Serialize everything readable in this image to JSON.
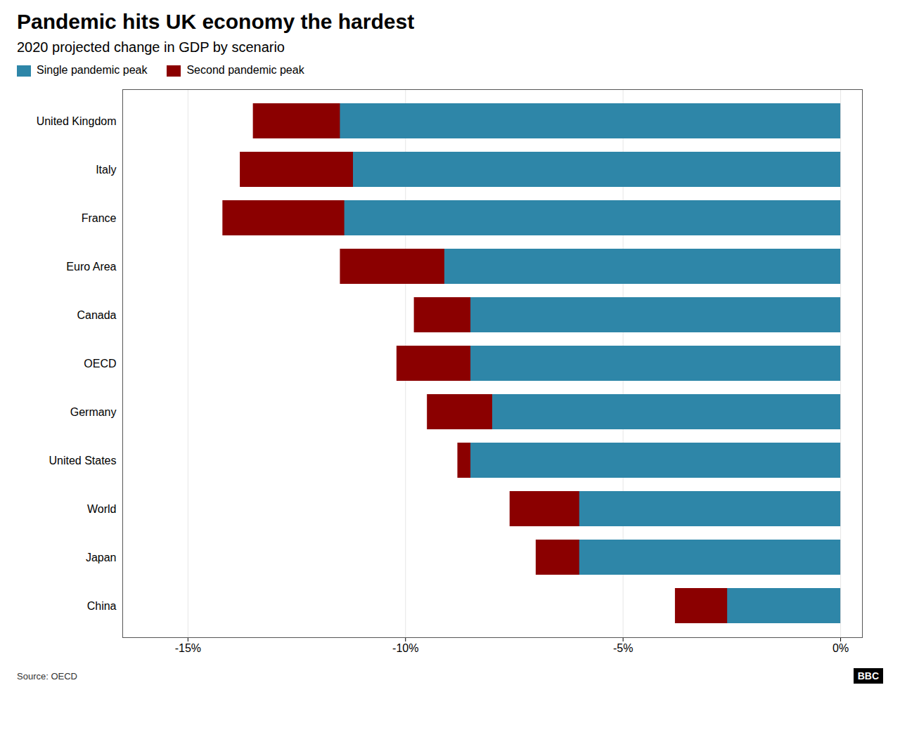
{
  "chart_data": {
    "type": "bar",
    "orientation": "horizontal",
    "stacked": false,
    "title": "Pandemic hits UK economy the hardest",
    "subtitle": "2020 projected change in GDP by scenario",
    "annotations": [
      "Source: OECD",
      "BBC"
    ],
    "categories": [
      "United Kingdom",
      "Italy",
      "France",
      "Euro Area",
      "Canada",
      "OECD",
      "Germany",
      "United States",
      "World",
      "Japan",
      "China"
    ],
    "series": [
      {
        "name": "Single pandemic peak",
        "color": "#2e86a8",
        "values": [
          -11.5,
          -11.2,
          -11.4,
          -9.1,
          -8.5,
          -8.5,
          -8.0,
          -8.5,
          -6.0,
          -6.0,
          -2.6
        ]
      },
      {
        "name": "Second pandemic peak",
        "color": "#8b0000",
        "values": [
          -13.5,
          -13.8,
          -14.2,
          -11.5,
          -9.8,
          -10.2,
          -9.5,
          -8.8,
          -7.6,
          -7.0,
          -3.8
        ]
      }
    ],
    "xlim": [
      -16.5,
      0.5
    ],
    "xticks": [
      {
        "value": -15,
        "label": "-15%"
      },
      {
        "value": -10,
        "label": "-10%"
      },
      {
        "value": -5,
        "label": "-5%"
      },
      {
        "value": 0,
        "label": "0%"
      }
    ],
    "grid": true,
    "legend": "top-left"
  }
}
